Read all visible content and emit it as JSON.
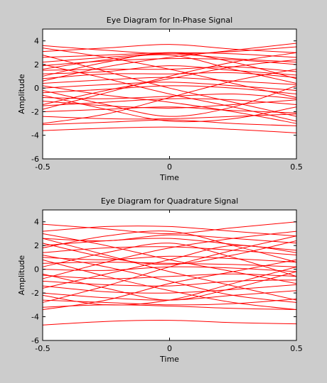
{
  "window": {
    "background": "#cccccc"
  },
  "chart_data": [
    {
      "type": "line",
      "title": "Eye Diagram for In-Phase Signal",
      "xlabel": "Time",
      "ylabel": "Amplitude",
      "xlim": [
        -0.5,
        0.5
      ],
      "ylim": [
        -6,
        5
      ],
      "xticks": [
        -0.5,
        0,
        0.5
      ],
      "xtick_labels": [
        "-0.5",
        "0",
        "0.5"
      ],
      "yticks": [
        -6,
        -4,
        -2,
        0,
        2,
        4
      ],
      "ytick_labels": [
        "-6",
        "-4",
        "-2",
        "0",
        "2",
        "4"
      ],
      "grid": false,
      "line_color": "#ff0000",
      "series": [
        {
          "y": [
            3.6,
            3.2,
            2.9,
            3.1,
            3.5
          ]
        },
        {
          "y": [
            3.1,
            3.4,
            3.7,
            3.3,
            3.0
          ]
        },
        {
          "y": [
            2.6,
            2.8,
            3.0,
            2.9,
            2.6
          ]
        },
        {
          "y": [
            2.2,
            2.6,
            2.9,
            2.5,
            2.2
          ]
        },
        {
          "y": [
            1.9,
            2.3,
            2.5,
            2.4,
            2.0
          ]
        },
        {
          "y": [
            1.5,
            1.6,
            1.6,
            1.8,
            1.4
          ]
        },
        {
          "y": [
            1.2,
            1.4,
            1.9,
            1.5,
            1.1
          ]
        },
        {
          "y": [
            0.8,
            1.2,
            1.2,
            1.3,
            0.9
          ]
        },
        {
          "y": [
            0.4,
            0.7,
            0.9,
            0.6,
            0.3
          ]
        },
        {
          "y": [
            0.0,
            0.3,
            0.5,
            0.2,
            -0.2
          ]
        },
        {
          "y": [
            -0.4,
            -0.1,
            0.2,
            0.0,
            -0.5
          ]
        },
        {
          "y": [
            -0.8,
            -0.9,
            -0.7,
            -0.5,
            -0.9
          ]
        },
        {
          "y": [
            -1.1,
            -1.5,
            -1.7,
            -1.4,
            -1.0
          ]
        },
        {
          "y": [
            -1.5,
            -1.2,
            -0.9,
            -1.0,
            -1.4
          ]
        },
        {
          "y": [
            -2.0,
            -1.8,
            -1.6,
            -1.9,
            -2.1
          ]
        },
        {
          "y": [
            -2.4,
            -2.6,
            -2.6,
            -2.4,
            -2.2
          ]
        },
        {
          "y": [
            -3.1,
            -2.9,
            -2.7,
            -3.0,
            -3.2
          ]
        },
        {
          "y": [
            -3.6,
            -3.4,
            -3.3,
            -3.5,
            -3.8
          ]
        },
        {
          "y": [
            -1.8,
            -0.4,
            1.0,
            2.2,
            3.0
          ]
        },
        {
          "y": [
            2.8,
            1.4,
            0.0,
            -1.2,
            -2.4
          ]
        },
        {
          "y": [
            0.6,
            1.8,
            2.6,
            3.2,
            3.8
          ]
        },
        {
          "y": [
            -0.6,
            -1.8,
            -2.8,
            -2.6,
            -1.6
          ]
        },
        {
          "y": [
            2.0,
            0.8,
            -0.5,
            -1.6,
            -2.8
          ]
        },
        {
          "y": [
            -3.0,
            -2.2,
            -0.8,
            0.6,
            1.6
          ]
        },
        {
          "y": [
            1.0,
            2.2,
            3.0,
            2.2,
            0.8
          ]
        },
        {
          "y": [
            -0.2,
            -1.4,
            -2.4,
            -1.6,
            0.2
          ]
        },
        {
          "y": [
            3.4,
            2.6,
            1.6,
            0.4,
            -0.8
          ]
        },
        {
          "y": [
            -1.4,
            -0.2,
            0.8,
            1.8,
            2.4
          ]
        },
        {
          "y": [
            0.2,
            -0.6,
            -1.2,
            -2.0,
            -3.0
          ]
        },
        {
          "y": [
            1.6,
            2.4,
            2.8,
            1.6,
            0.4
          ]
        }
      ]
    },
    {
      "type": "line",
      "title": "Eye Diagram for Quadrature Signal",
      "xlabel": "Time",
      "ylabel": "Amplitude",
      "xlim": [
        -0.5,
        0.5
      ],
      "ylim": [
        -6,
        5
      ],
      "xticks": [
        -0.5,
        0,
        0.5
      ],
      "xtick_labels": [
        "-0.5",
        "0",
        "0.5"
      ],
      "yticks": [
        -6,
        -4,
        -2,
        0,
        2,
        4
      ],
      "ytick_labels": [
        "-6",
        "-4",
        "-2",
        "0",
        "2",
        "4"
      ],
      "grid": false,
      "line_color": "#ff0000",
      "series": [
        {
          "y": [
            3.8,
            3.4,
            3.0,
            3.5,
            4.0
          ]
        },
        {
          "y": [
            3.2,
            3.6,
            3.6,
            3.2,
            2.8
          ]
        },
        {
          "y": [
            2.6,
            2.4,
            2.9,
            2.6,
            2.2
          ]
        },
        {
          "y": [
            2.0,
            2.4,
            2.6,
            2.1,
            1.6
          ]
        },
        {
          "y": [
            1.4,
            1.8,
            1.9,
            1.6,
            1.2
          ]
        },
        {
          "y": [
            1.0,
            0.8,
            1.1,
            0.9,
            0.6
          ]
        },
        {
          "y": [
            0.5,
            0.6,
            0.5,
            0.4,
            0.2
          ]
        },
        {
          "y": [
            0.0,
            -0.1,
            0.2,
            0.1,
            -0.2
          ]
        },
        {
          "y": [
            -0.5,
            -0.8,
            -0.6,
            -0.4,
            -0.6
          ]
        },
        {
          "y": [
            -1.0,
            -1.3,
            -1.4,
            -1.0,
            -0.9
          ]
        },
        {
          "y": [
            -1.4,
            -1.9,
            -2.0,
            -1.7,
            -1.3
          ]
        },
        {
          "y": [
            -2.0,
            -2.4,
            -2.6,
            -2.2,
            -1.8
          ]
        },
        {
          "y": [
            -2.6,
            -2.8,
            -3.0,
            -2.9,
            -2.5
          ]
        },
        {
          "y": [
            -3.2,
            -3.0,
            -3.1,
            -3.3,
            -3.4
          ]
        },
        {
          "y": [
            -4.7,
            -4.4,
            -4.3,
            -4.5,
            -4.6
          ]
        },
        {
          "y": [
            -2.8,
            -1.4,
            0.2,
            1.6,
            2.8
          ]
        },
        {
          "y": [
            2.6,
            1.2,
            -0.2,
            -1.4,
            -2.6
          ]
        },
        {
          "y": [
            -0.8,
            0.6,
            1.8,
            2.6,
            3.2
          ]
        },
        {
          "y": [
            0.8,
            -0.6,
            -1.8,
            -2.8,
            -3.4
          ]
        },
        {
          "y": [
            -2.2,
            -3.0,
            -2.6,
            -1.2,
            0.2
          ]
        },
        {
          "y": [
            1.8,
            2.8,
            3.2,
            2.0,
            0.6
          ]
        },
        {
          "y": [
            -1.6,
            -0.4,
            0.8,
            2.0,
            1.4
          ]
        },
        {
          "y": [
            3.0,
            2.0,
            0.8,
            -0.2,
            -1.2
          ]
        },
        {
          "y": [
            -3.4,
            -2.6,
            -1.2,
            -0.2,
            0.8
          ]
        },
        {
          "y": [
            0.2,
            1.4,
            2.2,
            1.0,
            -0.6
          ]
        },
        {
          "y": [
            1.2,
            0.2,
            -1.0,
            -2.2,
            -2.8
          ]
        },
        {
          "y": [
            -0.4,
            -1.6,
            -2.6,
            -1.6,
            -0.2
          ]
        },
        {
          "y": [
            2.2,
            1.0,
            0.4,
            1.2,
            2.4
          ]
        }
      ]
    }
  ]
}
